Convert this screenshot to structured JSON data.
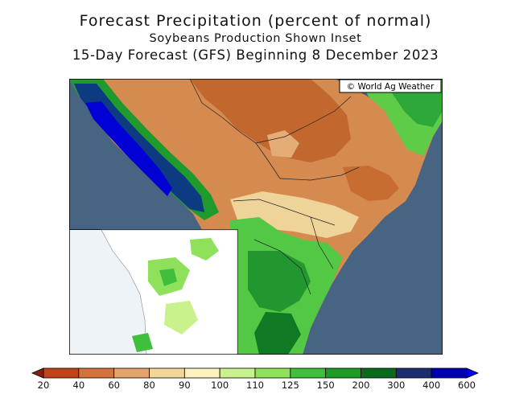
{
  "title": "Forecast Precipitation (percent of normal)",
  "subtitle": "Soybeans Production Shown Inset",
  "forecast_line": "15-Day Forecast (GFS) Beginning 8 December 2023",
  "copyright": "© World Ag Weather",
  "colors": {
    "ocean": "#476583",
    "land_dry_dark": "#b85a25",
    "land_dry": "#cf7a45",
    "land_below": "#dca06b",
    "land_normal": "#f1dd9e",
    "land_wet": "#77d94a",
    "land_wetter": "#3bb43a",
    "land_wettest": "#1a8c26",
    "heavy_dark": "#0d3b82",
    "heavy_blue": "#0000d4"
  },
  "legend": {
    "labels": [
      "20",
      "40",
      "60",
      "80",
      "90",
      "100",
      "110",
      "125",
      "150",
      "200",
      "300",
      "400",
      "600"
    ],
    "colors": [
      "#8b1c12",
      "#c0431c",
      "#d5733c",
      "#e2a46b",
      "#f4d59a",
      "#fbf2bf",
      "#c9f28c",
      "#8fe05a",
      "#3fbf3b",
      "#1e9a26",
      "#0b6a1c",
      "#1b2f6e",
      "#0000b0",
      "#0000ff"
    ]
  }
}
